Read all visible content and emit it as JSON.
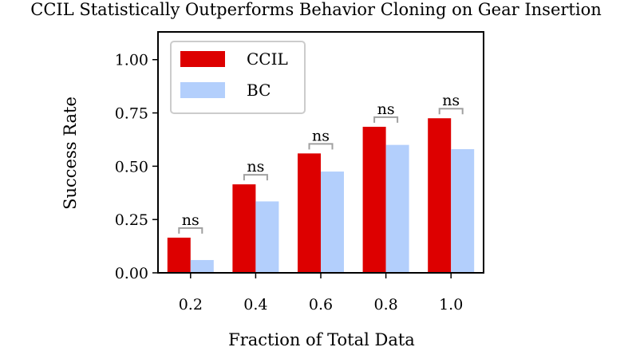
{
  "chart_data": {
    "type": "bar",
    "title": "CCIL Statistically Outperforms Behavior Cloning on Gear Insertion",
    "xlabel": "Fraction of Total Data",
    "ylabel": "Success Rate",
    "categories": [
      "0.2",
      "0.4",
      "0.6",
      "0.8",
      "1.0"
    ],
    "series": [
      {
        "name": "CCIL",
        "values": [
          0.165,
          0.415,
          0.56,
          0.685,
          0.725
        ],
        "color": "#dd0000"
      },
      {
        "name": "BC",
        "values": [
          0.06,
          0.335,
          0.475,
          0.6,
          0.58
        ],
        "color": "#b3cffc"
      }
    ],
    "ylim": [
      0,
      1.13
    ],
    "yticks": [
      "0.00",
      "0.25",
      "0.50",
      "0.75",
      "1.00"
    ],
    "annotations": [
      "ns",
      "ns",
      "ns",
      "ns",
      "ns"
    ],
    "annotation_color": "#a0a0a0",
    "legend_position": "top-left",
    "grid": false
  }
}
